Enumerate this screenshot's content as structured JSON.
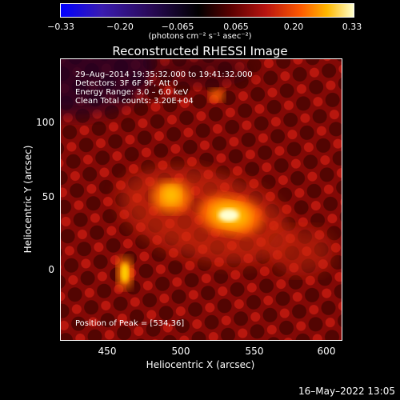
{
  "colorbar": {
    "ticks": [
      "−0.33",
      "−0.20",
      "−0.065",
      "0.065",
      "0.20",
      "0.33"
    ],
    "unit": "(photons cm⁻² s⁻¹ asec⁻²)"
  },
  "title": "Reconstructed RHESSI Image",
  "annotations": {
    "time": "29–Aug–2014 19:35:32.000 to 19:41:32.000",
    "detectors": "Detectors: 3F 6F 9F, Att 0",
    "energy": "Energy Range: 3.0 – 6.0 keV",
    "clean": "Clean    Total counts: 3.20E+04",
    "peak": "Position of Peak = [534,36]"
  },
  "axes": {
    "xlabel": "Heliocentric X (arcsec)",
    "ylabel": "Heliocentric Y (arcsec)",
    "xticks": [
      "450",
      "500",
      "550",
      "600"
    ],
    "yticks": [
      "100",
      "50",
      "0"
    ]
  },
  "footer": "16–May–2022 13:05"
}
